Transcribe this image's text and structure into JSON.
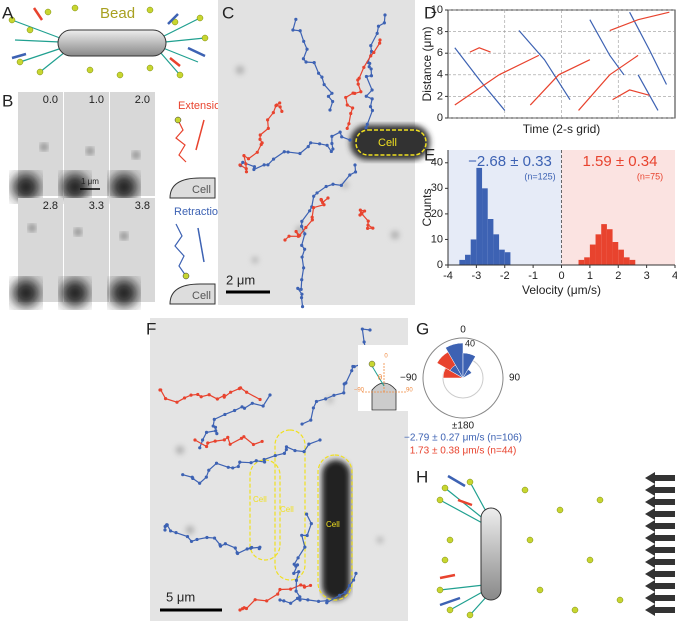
{
  "panels": {
    "labels": [
      "A",
      "B",
      "C",
      "D",
      "E",
      "F",
      "G",
      "H"
    ]
  },
  "panel_a": {
    "bead": "Bead"
  },
  "panel_b": {
    "times": [
      "0.0",
      "1.0",
      "2.0",
      "2.8",
      "3.3",
      "3.8"
    ],
    "scale": "1 μm",
    "extension": "Extension",
    "retraction": "Retraction",
    "cell": "Cell"
  },
  "panel_c": {
    "cell": "Cell",
    "scale": "2 μm"
  },
  "panel_f": {
    "cell": "Cell",
    "scale": "5 μm"
  },
  "chart_data": [
    {
      "type": "line",
      "ylabel": "Distance (μm)",
      "xlabel": "Time (2-s grid)",
      "xlim": [
        0,
        8
      ],
      "xgrid": [
        2,
        4,
        6
      ],
      "ylim": [
        0,
        10
      ],
      "yticks": [
        0,
        2,
        4,
        6,
        8,
        10
      ],
      "grid": true,
      "series": [
        {
          "color": "#3d62b3",
          "x": [
            0.24,
            1.12,
            2.0
          ],
          "values": [
            6.5,
            3.5,
            0.7
          ]
        },
        {
          "color": "#3d62b3",
          "x": [
            2.5,
            3.4,
            4.3
          ],
          "values": [
            8.1,
            5.4,
            1.7
          ]
        },
        {
          "color": "#3d62b3",
          "x": [
            5.0,
            5.7,
            6.2
          ],
          "values": [
            9.1,
            5.8,
            4.0
          ]
        },
        {
          "color": "#3d62b3",
          "x": [
            6.4,
            7.1,
            7.7
          ],
          "values": [
            9.8,
            6.3,
            3.1
          ]
        },
        {
          "color": "#3d62b3",
          "x": [
            6.7,
            7.4
          ],
          "values": [
            4.0,
            0.7
          ]
        },
        {
          "color": "#e8432e",
          "x": [
            0.24,
            1.8,
            3.2
          ],
          "values": [
            1.2,
            4.0,
            5.8
          ]
        },
        {
          "color": "#e8432e",
          "x": [
            0.77,
            1.1,
            1.5
          ],
          "values": [
            6.1,
            6.5,
            6.1
          ]
        },
        {
          "color": "#e8432e",
          "x": [
            2.9,
            3.9,
            5.0
          ],
          "values": [
            1.2,
            4.0,
            5.4
          ]
        },
        {
          "color": "#e8432e",
          "x": [
            4.6,
            5.7,
            6.7
          ],
          "values": [
            0.7,
            4.0,
            5.8
          ]
        },
        {
          "color": "#e8432e",
          "x": [
            5.7,
            6.7,
            7.8
          ],
          "values": [
            8.1,
            9.1,
            9.8
          ]
        },
        {
          "color": "#e8432e",
          "x": [
            5.8,
            6.4,
            7.1
          ],
          "values": [
            1.7,
            2.6,
            2.1
          ]
        }
      ]
    },
    {
      "type": "histogram",
      "ylabel": "Counts",
      "xlabel": "Velocity (μm/s)",
      "xlim": [
        -4,
        4
      ],
      "xticks": [
        -4,
        -3,
        -2,
        -1,
        0,
        1,
        2,
        3,
        4
      ],
      "ylim": [
        0,
        45
      ],
      "yticks": [
        0,
        10,
        20,
        30,
        40
      ],
      "shade_colors": [
        "#e6ebf7",
        "#fbe3e1"
      ],
      "series": [
        {
          "color": "#3d62b3",
          "bins": [
            -3.6,
            -3.4,
            -3.2,
            -3.0,
            -2.8,
            -2.6,
            -2.4,
            -2.2,
            -2.0,
            -1.8
          ],
          "values": [
            2,
            4,
            10,
            38,
            30,
            18,
            12,
            6,
            5
          ]
        },
        {
          "color": "#e8432e",
          "bins": [
            0.6,
            0.8,
            1.0,
            1.2,
            1.4,
            1.6,
            1.8,
            2.0,
            2.2,
            2.4,
            2.6
          ],
          "values": [
            2,
            3,
            8,
            12,
            16,
            14,
            9,
            6,
            3,
            2
          ]
        }
      ],
      "annotations": [
        {
          "text": "−2.68 ± 0.33",
          "note": "(n=125)",
          "color": "#3d62b3"
        },
        {
          "text": "1.59 ± 0.34",
          "note": "(n=75)",
          "color": "#e8432e"
        }
      ]
    },
    {
      "type": "polar",
      "rlim": [
        0,
        40
      ],
      "rticks": [
        40
      ],
      "angle_labels": [
        "0",
        "90",
        "±180",
        "−90"
      ],
      "bin_width": 30,
      "inset_labels": [
        "θ",
        "0",
        "−90",
        "90"
      ],
      "series": [
        {
          "color": "#e8432e",
          "theta": [
            -75,
            -45,
            -15,
            15
          ],
          "values": [
            20,
            30,
            10,
            15
          ]
        },
        {
          "color": "#3d62b3",
          "theta": [
            -45,
            -15,
            15,
            45
          ],
          "values": [
            15,
            35,
            25,
            10
          ]
        }
      ],
      "summaries": [
        {
          "text": "−2.79 ± 0.27 μm/s (n=106)",
          "color": "#3d62b3"
        },
        {
          "text": "1.73 ± 0.38 μm/s (n=44)",
          "color": "#e8432e"
        }
      ]
    }
  ]
}
